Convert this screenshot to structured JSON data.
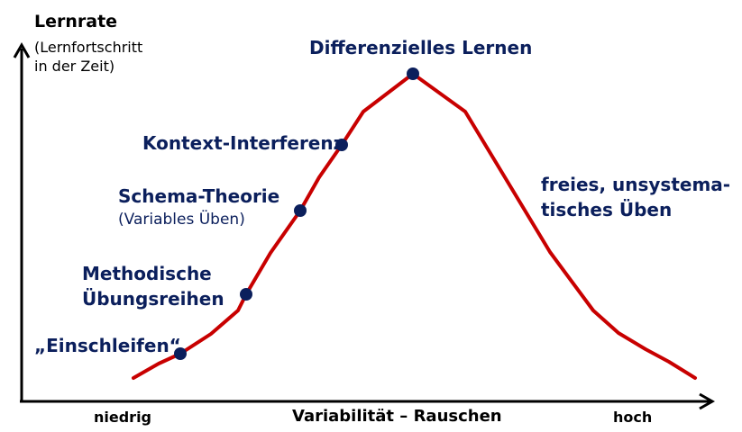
{
  "axes": {
    "y_title": "Lernrate",
    "y_subtitle_line1": "(Lernfortschritt",
    "y_subtitle_line2": "in der Zeit)",
    "x_low": "niedrig",
    "x_title": "Variabilität – Rauschen",
    "x_high": "hoch"
  },
  "points": {
    "einschleifen": "„Einschleifen“",
    "methodische_line1": "Methodische",
    "methodische_line2": "Übungsreihen",
    "schema_line1": "Schema-Theorie",
    "schema_line2": "(Variables Üben)",
    "kontext": "Kontext-Interferenz",
    "differenziell": "Differenzielles Lernen"
  },
  "free_practice": {
    "line1": "freies, unsystema-",
    "line2": "tisches Üben"
  },
  "colors": {
    "curve": "#c80000",
    "dots": "#0b1f5c",
    "labels": "#0b1f5c",
    "axes": "#000000"
  }
}
